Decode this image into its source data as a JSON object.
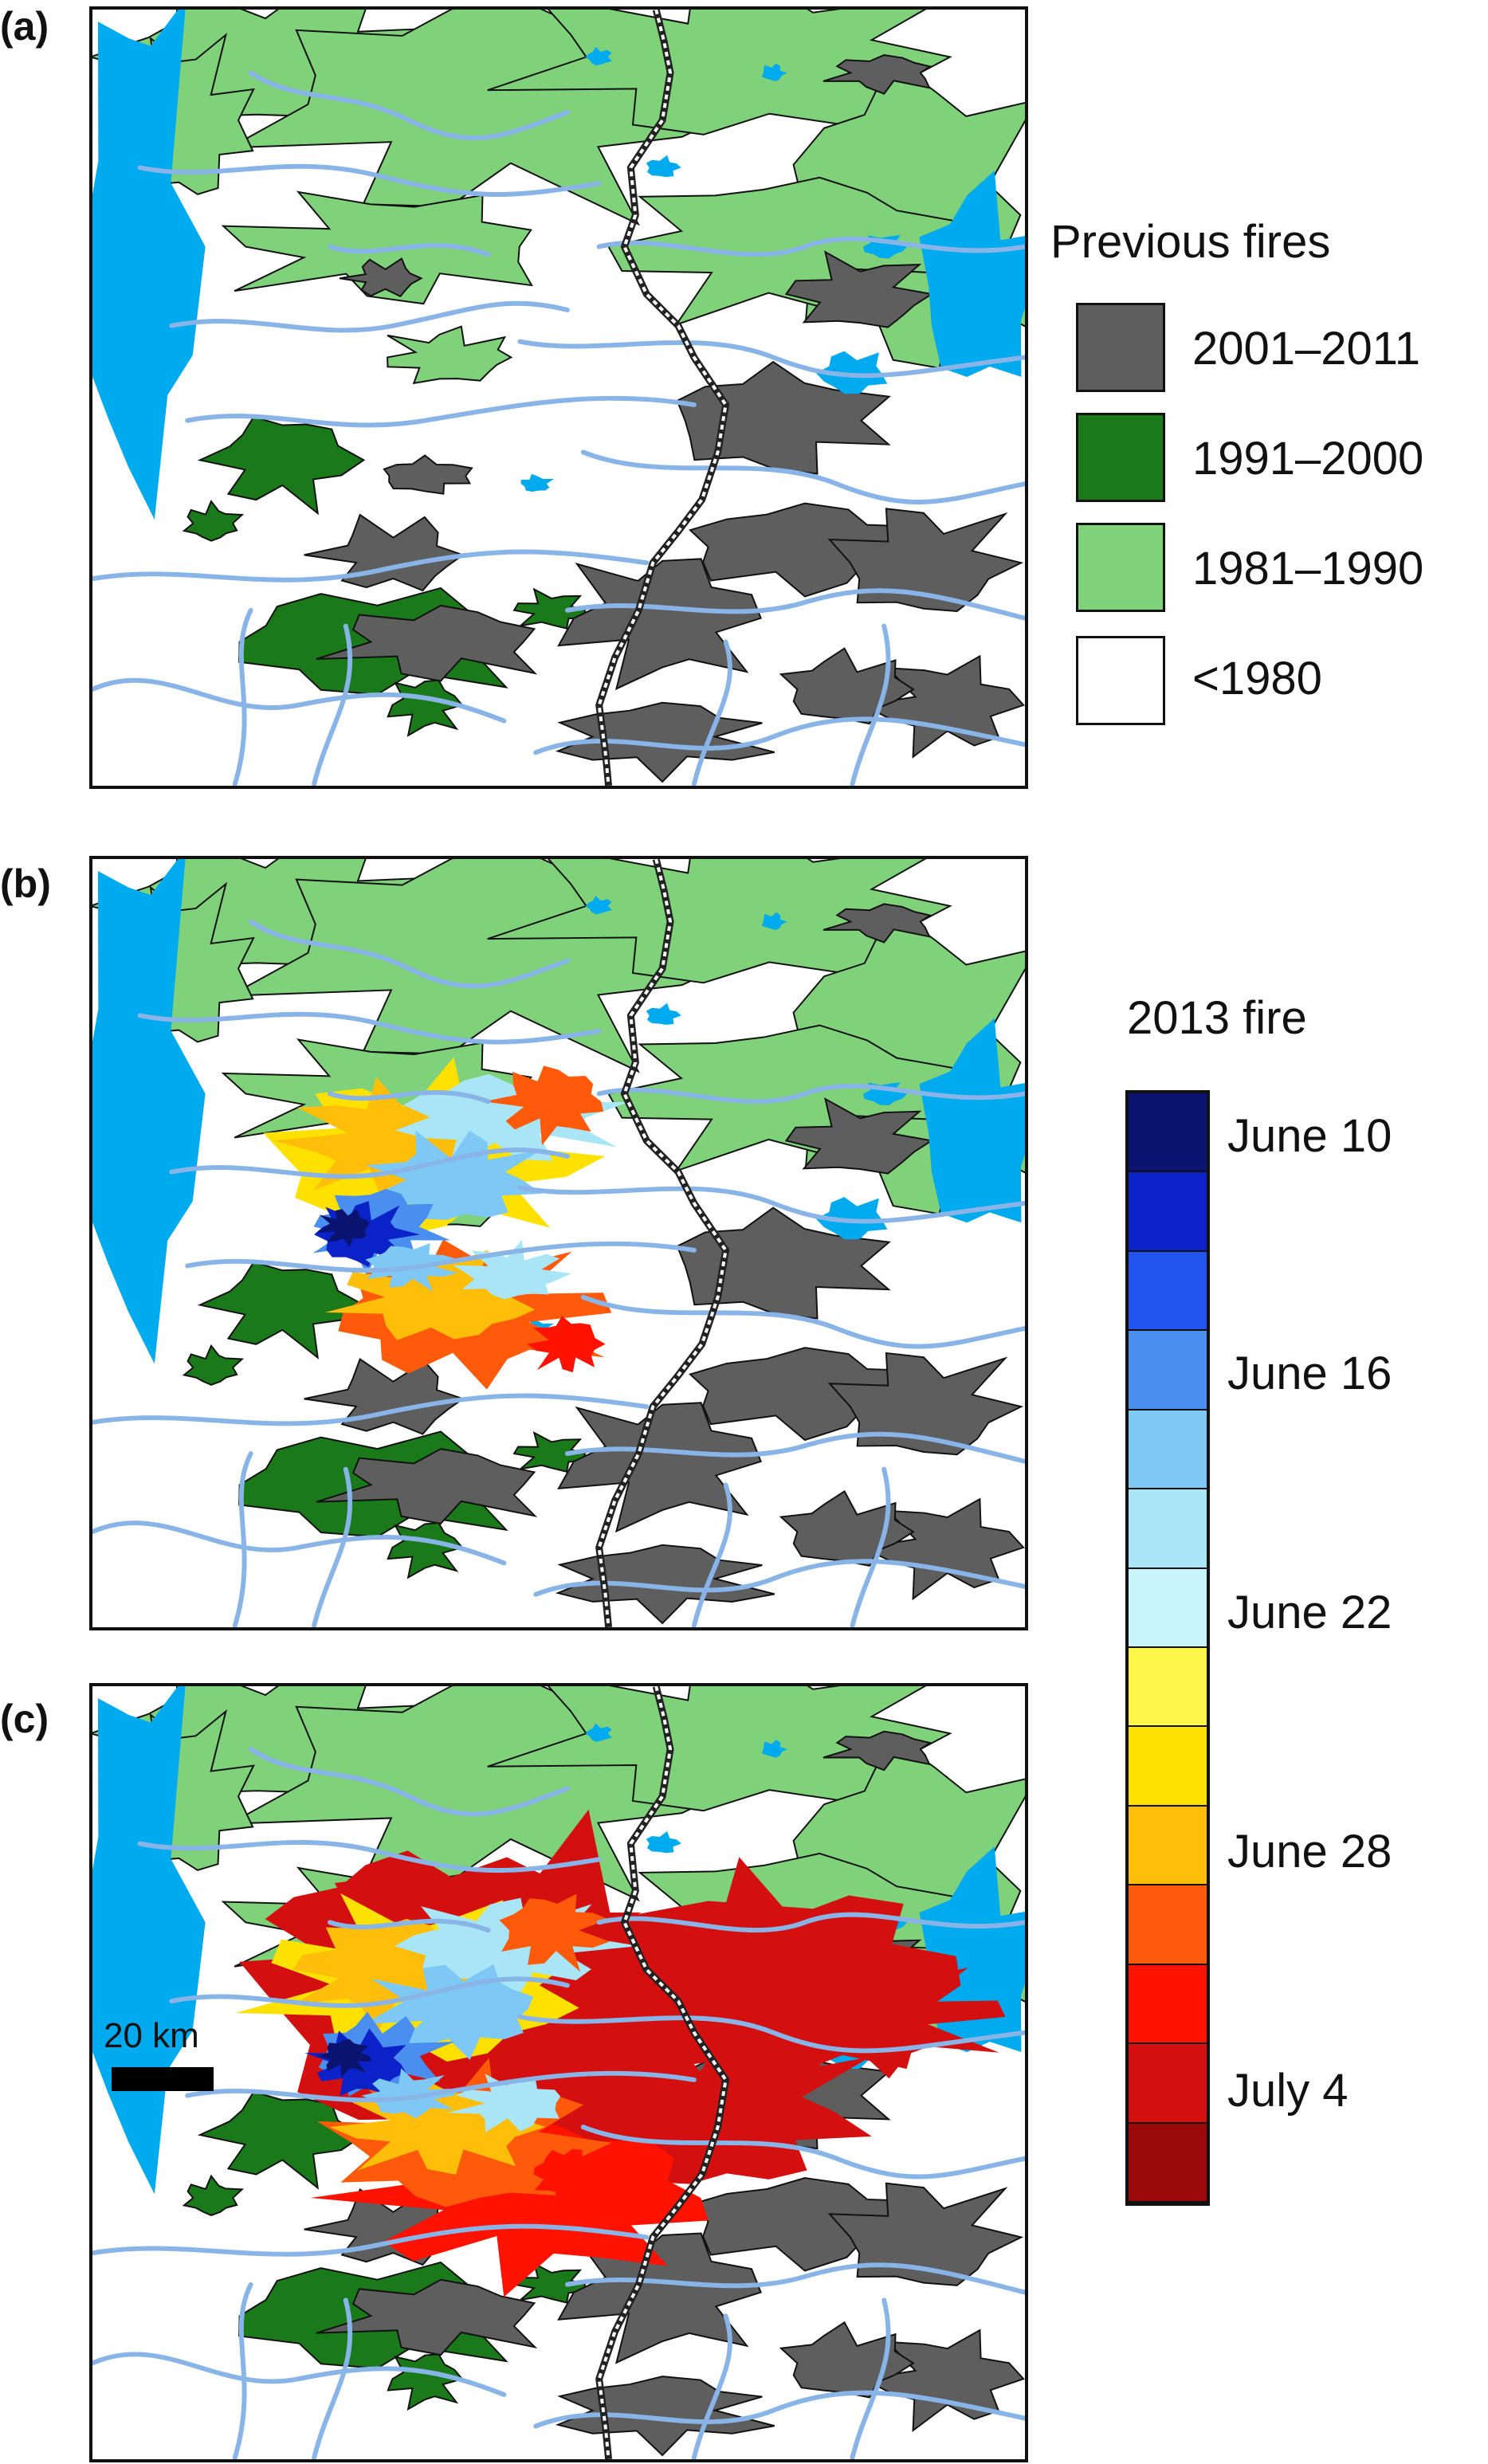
{
  "panels": [
    {
      "label": "(a)"
    },
    {
      "label": "(b)"
    },
    {
      "label": "(c)"
    }
  ],
  "legend_previous": {
    "title": "Previous fires",
    "items": [
      {
        "label": "2001–2011",
        "color": "#5e5e5e"
      },
      {
        "label": "1991–2000",
        "color": "#1a7a1a"
      },
      {
        "label": "1981–1990",
        "color": "#7fd17a"
      },
      {
        "label": "<1980",
        "color": "#ffffff"
      }
    ]
  },
  "legend_2013": {
    "title": "2013 fire",
    "colors": [
      "#0a1470",
      "#0b22c8",
      "#2255f0",
      "#4a8ef0",
      "#7ec8f5",
      "#a8e6f7",
      "#c8f4fb",
      "#fff64a",
      "#ffe100",
      "#ffbe0a",
      "#ff5a0a",
      "#ff1200",
      "#d40f0f",
      "#9a0a0a"
    ],
    "labels": [
      "June 10",
      "June 16",
      "June 22",
      "June 28",
      "July 4"
    ]
  },
  "scale_bar": {
    "label": "20  km"
  },
  "map_colors": {
    "water": "#00aaee",
    "river": "#88b4e8",
    "border_line": "#222222"
  }
}
